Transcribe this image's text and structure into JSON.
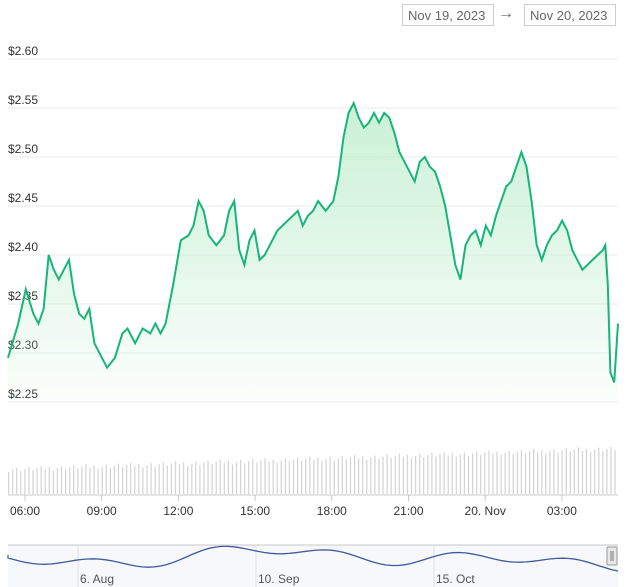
{
  "range_selector": {
    "from": "Nov 19, 2023",
    "to": "Nov 20, 2023",
    "arrow": "→"
  },
  "colors": {
    "line": "#16b57a",
    "fill": "#b8ecc8",
    "volume": "#d3d3d3",
    "navigator": "#3d5a9c",
    "grid": "#ebebeb"
  },
  "chart_data": {
    "type": "area",
    "title": "",
    "xlabel": "",
    "ylabel": "",
    "x_ticks": [
      "06:00",
      "09:00",
      "12:00",
      "15:00",
      "18:00",
      "21:00",
      "20. Nov",
      "03:00"
    ],
    "y_ticks": [
      "$2.25",
      "$2.30",
      "$2.35",
      "$2.40",
      "$2.45",
      "$2.50",
      "$2.55",
      "$2.60"
    ],
    "x_range": [
      0,
      24
    ],
    "ylim": [
      2.25,
      2.6
    ],
    "grid": true,
    "legend": "none",
    "series": [
      {
        "values": [
          [
            0.0,
            2.295
          ],
          [
            0.4,
            2.33
          ],
          [
            0.7,
            2.365
          ],
          [
            1.0,
            2.34
          ],
          [
            1.2,
            2.33
          ],
          [
            1.4,
            2.345
          ],
          [
            1.6,
            2.4
          ],
          [
            1.8,
            2.385
          ],
          [
            2.0,
            2.375
          ],
          [
            2.2,
            2.385
          ],
          [
            2.4,
            2.395
          ],
          [
            2.6,
            2.36
          ],
          [
            2.8,
            2.34
          ],
          [
            3.0,
            2.335
          ],
          [
            3.2,
            2.345
          ],
          [
            3.4,
            2.31
          ],
          [
            3.7,
            2.295
          ],
          [
            3.9,
            2.285
          ],
          [
            4.2,
            2.295
          ],
          [
            4.5,
            2.32
          ],
          [
            4.7,
            2.325
          ],
          [
            5.0,
            2.31
          ],
          [
            5.3,
            2.325
          ],
          [
            5.6,
            2.32
          ],
          [
            5.8,
            2.33
          ],
          [
            6.0,
            2.32
          ],
          [
            6.2,
            2.33
          ],
          [
            6.5,
            2.37
          ],
          [
            6.8,
            2.415
          ],
          [
            7.1,
            2.42
          ],
          [
            7.3,
            2.43
          ],
          [
            7.5,
            2.455
          ],
          [
            7.7,
            2.445
          ],
          [
            7.9,
            2.42
          ],
          [
            8.2,
            2.41
          ],
          [
            8.5,
            2.42
          ],
          [
            8.7,
            2.445
          ],
          [
            8.9,
            2.455
          ],
          [
            9.1,
            2.405
          ],
          [
            9.3,
            2.39
          ],
          [
            9.5,
            2.415
          ],
          [
            9.7,
            2.425
          ],
          [
            9.9,
            2.395
          ],
          [
            10.1,
            2.4
          ],
          [
            10.4,
            2.415
          ],
          [
            10.6,
            2.425
          ],
          [
            10.8,
            2.43
          ],
          [
            11.0,
            2.435
          ],
          [
            11.2,
            2.44
          ],
          [
            11.4,
            2.445
          ],
          [
            11.6,
            2.43
          ],
          [
            11.8,
            2.44
          ],
          [
            12.0,
            2.445
          ],
          [
            12.2,
            2.455
          ],
          [
            12.5,
            2.445
          ],
          [
            12.8,
            2.455
          ],
          [
            13.0,
            2.48
          ],
          [
            13.2,
            2.52
          ],
          [
            13.4,
            2.545
          ],
          [
            13.6,
            2.555
          ],
          [
            13.8,
            2.54
          ],
          [
            14.0,
            2.53
          ],
          [
            14.2,
            2.535
          ],
          [
            14.4,
            2.545
          ],
          [
            14.6,
            2.535
          ],
          [
            14.8,
            2.545
          ],
          [
            15.0,
            2.54
          ],
          [
            15.2,
            2.525
          ],
          [
            15.4,
            2.505
          ],
          [
            15.6,
            2.495
          ],
          [
            15.8,
            2.485
          ],
          [
            16.0,
            2.475
          ],
          [
            16.2,
            2.495
          ],
          [
            16.4,
            2.5
          ],
          [
            16.6,
            2.49
          ],
          [
            16.8,
            2.485
          ],
          [
            17.0,
            2.47
          ],
          [
            17.2,
            2.45
          ],
          [
            17.4,
            2.42
          ],
          [
            17.6,
            2.39
          ],
          [
            17.8,
            2.375
          ],
          [
            18.0,
            2.41
          ],
          [
            18.2,
            2.42
          ],
          [
            18.4,
            2.425
          ],
          [
            18.6,
            2.41
          ],
          [
            18.8,
            2.43
          ],
          [
            19.0,
            2.42
          ],
          [
            19.2,
            2.44
          ],
          [
            19.4,
            2.455
          ],
          [
            19.6,
            2.47
          ],
          [
            19.8,
            2.475
          ],
          [
            20.0,
            2.49
          ],
          [
            20.2,
            2.505
          ],
          [
            20.4,
            2.49
          ],
          [
            20.6,
            2.455
          ],
          [
            20.8,
            2.41
          ],
          [
            21.0,
            2.395
          ],
          [
            21.2,
            2.41
          ],
          [
            21.4,
            2.42
          ],
          [
            21.6,
            2.425
          ],
          [
            21.8,
            2.435
          ],
          [
            22.0,
            2.425
          ],
          [
            22.2,
            2.405
          ],
          [
            22.4,
            2.395
          ],
          [
            22.6,
            2.385
          ],
          [
            22.8,
            2.39
          ],
          [
            23.0,
            2.395
          ],
          [
            23.2,
            2.4
          ],
          [
            23.4,
            2.405
          ],
          [
            23.5,
            2.41
          ],
          [
            23.6,
            2.37
          ],
          [
            23.7,
            2.28
          ],
          [
            23.85,
            2.27
          ],
          [
            24.0,
            2.33
          ]
        ]
      }
    ],
    "navigator": {
      "x_ticks": [
        "6. Aug",
        "10. Sep",
        "15. Oct"
      ]
    }
  }
}
